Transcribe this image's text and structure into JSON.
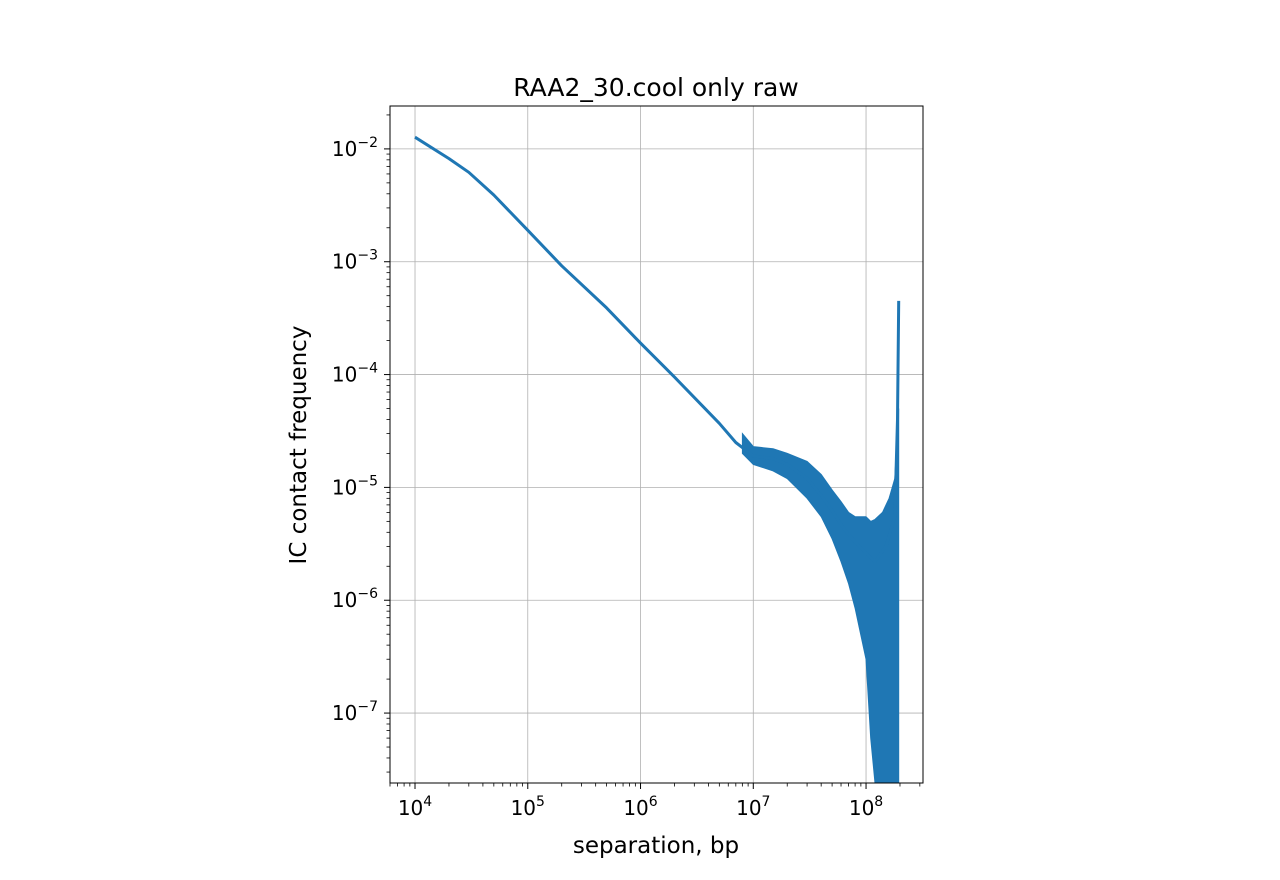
{
  "chart_data": {
    "type": "line",
    "title": "RAA2_30.cool only raw",
    "xlabel": "separation, bp",
    "ylabel": "IC contact frequency",
    "x_scale": "log",
    "y_scale": "log",
    "xlim": [
      6000,
      320000000
    ],
    "ylim": [
      2.4e-08,
      0.024
    ],
    "grid": true,
    "x_ticks": [
      {
        "value": 10000,
        "base": "10",
        "exp": "4"
      },
      {
        "value": 100000,
        "base": "10",
        "exp": "5"
      },
      {
        "value": 1000000,
        "base": "10",
        "exp": "6"
      },
      {
        "value": 10000000,
        "base": "10",
        "exp": "7"
      },
      {
        "value": 100000000,
        "base": "10",
        "exp": "8"
      }
    ],
    "y_ticks": [
      {
        "value": 1e-07,
        "base": "10",
        "exp": "−7"
      },
      {
        "value": 1e-06,
        "base": "10",
        "exp": "−6"
      },
      {
        "value": 1e-05,
        "base": "10",
        "exp": "−5"
      },
      {
        "value": 0.0001,
        "base": "10",
        "exp": "−4"
      },
      {
        "value": 0.001,
        "base": "10",
        "exp": "−3"
      },
      {
        "value": 0.01,
        "base": "10",
        "exp": "−2"
      }
    ],
    "series": [
      {
        "color": "#1f77b4",
        "x": [
          10000,
          20000,
          30000,
          50000,
          100000,
          200000,
          500000,
          1000000,
          2000000,
          5000000,
          7000000,
          10000000,
          15000000,
          20000000,
          30000000,
          40000000,
          50000000,
          60000000,
          70000000,
          80000000,
          100000000,
          120000000,
          150000000,
          180000000,
          190000000,
          195000000
        ],
        "y": [
          0.0127,
          0.0082,
          0.0062,
          0.0039,
          0.0019,
          0.00092,
          0.00039,
          0.00019,
          9.5e-05,
          3.7e-05,
          2.5e-05,
          1.9e-05,
          1.8e-05,
          1.6e-05,
          1.2e-05,
          8.5e-06,
          6.2e-06,
          4.7e-06,
          3.8e-06,
          3.3e-06,
          2.6e-06,
          2.2e-06,
          3e-06,
          5.5e-06,
          4e-05,
          0.00045
        ]
      }
    ],
    "noise_band": {
      "x": [
        8000000,
        10000000,
        15000000,
        20000000,
        30000000,
        40000000,
        50000000,
        60000000,
        70000000,
        80000000,
        100000000,
        110000000,
        120000000,
        140000000,
        160000000,
        180000000,
        195000000
      ],
      "y_upper": [
        3e-05,
        2.3e-05,
        2.2e-05,
        2e-05,
        1.7e-05,
        1.3e-05,
        9.5e-06,
        7.5e-06,
        6e-06,
        5.5e-06,
        5.5e-06,
        5e-06,
        5.2e-06,
        6e-06,
        8e-06,
        1.2e-05,
        5e-05
      ],
      "y_lower": [
        2e-05,
        1.6e-05,
        1.4e-05,
        1.2e-05,
        8e-06,
        5.5e-06,
        3.5e-06,
        2.2e-06,
        1.4e-06,
        8.5e-07,
        3e-07,
        6e-08,
        2.4e-08,
        2.4e-08,
        2.4e-08,
        2.4e-08,
        2.4e-08
      ]
    }
  }
}
